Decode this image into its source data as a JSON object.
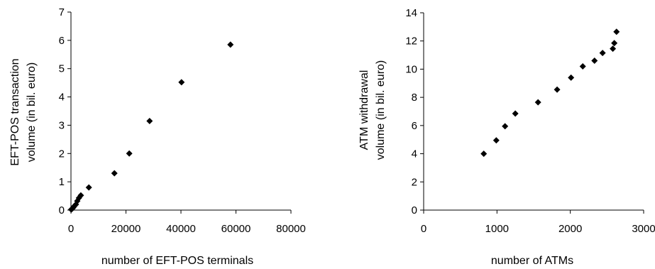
{
  "chart_data": [
    {
      "type": "scatter",
      "xlabel": "number of EFT-POS terminals",
      "ylabel_lines": [
        "EFT-POS transaction",
        "volume (in bil. euro)"
      ],
      "xlim": [
        0,
        80000
      ],
      "ylim": [
        0,
        7
      ],
      "xticks": [
        0,
        20000,
        40000,
        60000,
        80000
      ],
      "yticks": [
        0,
        1,
        2,
        3,
        4,
        5,
        6,
        7
      ],
      "grid": false,
      "marker": "diamond",
      "color": "#000000",
      "points": [
        {
          "x": 100,
          "y": 0.02
        },
        {
          "x": 300,
          "y": 0.04
        },
        {
          "x": 600,
          "y": 0.06
        },
        {
          "x": 900,
          "y": 0.1
        },
        {
          "x": 1300,
          "y": 0.15
        },
        {
          "x": 1800,
          "y": 0.2
        },
        {
          "x": 2300,
          "y": 0.32
        },
        {
          "x": 2900,
          "y": 0.43
        },
        {
          "x": 3600,
          "y": 0.52
        },
        {
          "x": 6500,
          "y": 0.8
        },
        {
          "x": 15800,
          "y": 1.3
        },
        {
          "x": 21200,
          "y": 2.0
        },
        {
          "x": 28600,
          "y": 3.15
        },
        {
          "x": 40200,
          "y": 4.52
        },
        {
          "x": 58000,
          "y": 5.85
        }
      ]
    },
    {
      "type": "scatter",
      "xlabel": "number of ATMs",
      "ylabel_lines": [
        "ATM withdrawal",
        "volume (in bil. euro)"
      ],
      "xlim": [
        0,
        3000
      ],
      "ylim": [
        0,
        14
      ],
      "xticks": [
        0,
        1000,
        2000,
        3000
      ],
      "yticks": [
        0,
        2,
        4,
        6,
        8,
        10,
        12,
        14
      ],
      "grid": false,
      "marker": "diamond",
      "color": "#000000",
      "points": [
        {
          "x": 820,
          "y": 4.0
        },
        {
          "x": 990,
          "y": 4.95
        },
        {
          "x": 1110,
          "y": 5.95
        },
        {
          "x": 1250,
          "y": 6.85
        },
        {
          "x": 1560,
          "y": 7.65
        },
        {
          "x": 1820,
          "y": 8.55
        },
        {
          "x": 2010,
          "y": 9.4
        },
        {
          "x": 2170,
          "y": 10.2
        },
        {
          "x": 2330,
          "y": 10.6
        },
        {
          "x": 2440,
          "y": 11.15
        },
        {
          "x": 2580,
          "y": 11.45
        },
        {
          "x": 2600,
          "y": 11.85
        },
        {
          "x": 2630,
          "y": 12.65
        }
      ]
    }
  ]
}
